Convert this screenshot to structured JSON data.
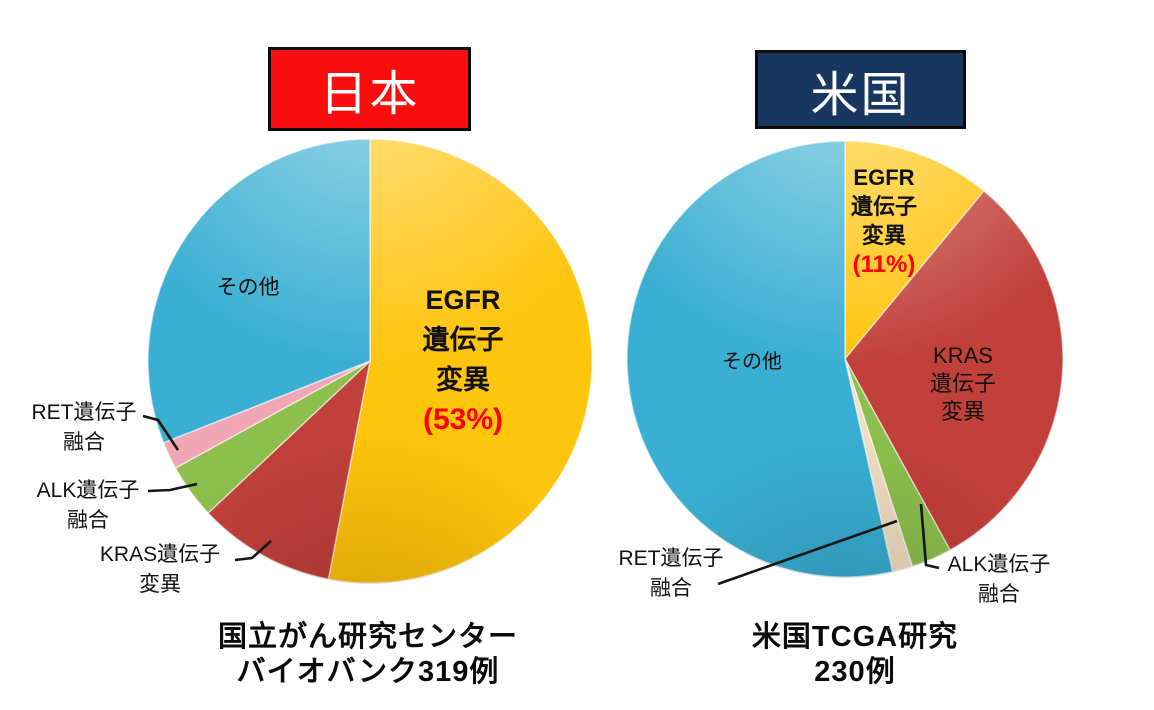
{
  "japan": {
    "title": "日本",
    "box_color": "#FC0D0D",
    "pie_labels": {
      "other": "その他",
      "egfr_l1": "EGFR",
      "egfr_l2": "遺伝子",
      "egfr_l3": "変異",
      "egfr_pct": "(53%)",
      "ret_l1": "RET遺伝子",
      "ret_l2": "融合",
      "alk_l1": "ALK遺伝子",
      "alk_l2": "融合",
      "kras_l1": "KRAS遺伝子",
      "kras_l2": "変異"
    },
    "caption_l1": "国立がん研究センター",
    "caption_l2": "バイオバンク319例"
  },
  "usa": {
    "title": "米国",
    "box_color": "#173761",
    "pie_labels": {
      "other": "その他",
      "egfr_l1": "EGFR",
      "egfr_l2": "遺伝子",
      "egfr_l3": "変異",
      "egfr_pct": "(11%)",
      "kras_l1": "KRAS",
      "kras_l2": "遺伝子",
      "kras_l3": "変異",
      "ret_l1": "RET遺伝子",
      "ret_l2": "融合",
      "alk_l1": "ALK遺伝子",
      "alk_l2": "融合"
    },
    "caption_l1": "米国TCGA研究",
    "caption_l2": "230例"
  },
  "chart_data": [
    {
      "type": "pie",
      "title": "日本",
      "source_caption": "国立がん研究センター バイオバンク319例",
      "n_cases": 319,
      "start": "12 o'clock, clockwise",
      "slices": [
        {
          "label": "EGFR遺伝子変異",
          "value_pct": 53,
          "shown_pct": "(53%)",
          "color": "#FFC40C"
        },
        {
          "label": "KRAS遺伝子変異",
          "value_pct": 10,
          "color": "#C2403A"
        },
        {
          "label": "ALK遺伝子融合",
          "value_pct": 4,
          "color": "#8DBF4E"
        },
        {
          "label": "RET遺伝子融合",
          "value_pct": 2,
          "color": "#F0A6B4"
        },
        {
          "label": "その他",
          "value_pct": 31,
          "color": "#39AFD3"
        }
      ]
    },
    {
      "type": "pie",
      "title": "米国",
      "source_caption": "米国TCGA研究 230例",
      "n_cases": 230,
      "start": "12 o'clock, clockwise",
      "slices": [
        {
          "label": "EGFR遺伝子変異",
          "value_pct": 11,
          "shown_pct": "(11%)",
          "color": "#FFC40C"
        },
        {
          "label": "KRAS遺伝子変異",
          "value_pct": 31,
          "color": "#C2403A"
        },
        {
          "label": "ALK遺伝子融合",
          "value_pct": 3,
          "color": "#8DBF4E"
        },
        {
          "label": "RET遺伝子融合",
          "value_pct": 1.5,
          "color": "#F0DEC2"
        },
        {
          "label": "その他",
          "value_pct": 53.5,
          "color": "#39AFD3"
        }
      ]
    }
  ]
}
